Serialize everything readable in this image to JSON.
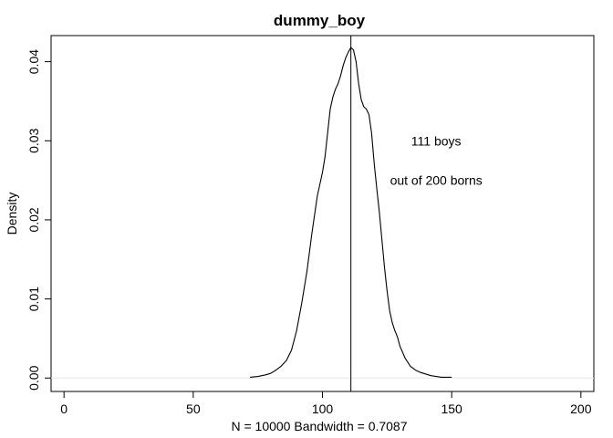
{
  "chart_data": {
    "type": "line",
    "title": "dummy_boy",
    "xlabel": "N = 10000   Bandwidth = 0.7087",
    "ylabel": "Density",
    "xlim": [
      -5,
      205
    ],
    "ylim": [
      -0.0017,
      0.0433
    ],
    "x_ticks": [
      0,
      50,
      100,
      150,
      200
    ],
    "x_tick_labels": [
      "0",
      "50",
      "100",
      "150",
      "200"
    ],
    "y_ticks": [
      0.0,
      0.01,
      0.02,
      0.03,
      0.04
    ],
    "y_tick_labels": [
      "0.00",
      "0.01",
      "0.02",
      "0.03",
      "0.04"
    ],
    "grid": false,
    "reference_line": {
      "orientation": "vertical",
      "x": 111
    },
    "annotations": [
      {
        "text": "111 boys",
        "x": 144,
        "y": 0.03
      },
      {
        "text": "out of 200 borns",
        "x": 144,
        "y": 0.025
      }
    ],
    "series": [
      {
        "x": [
          72,
          75,
          78,
          80,
          82,
          84,
          86,
          88,
          90,
          92,
          94,
          96,
          98,
          100,
          101,
          102,
          103,
          104,
          105,
          106,
          107,
          108,
          109,
          110,
          111,
          112,
          113,
          114,
          115,
          116,
          117,
          118,
          119,
          120,
          121,
          122,
          123,
          124,
          125,
          126,
          127,
          128,
          129,
          130,
          132,
          134,
          136,
          138,
          140,
          142,
          144,
          146,
          148,
          150
        ],
        "y": [
          0.0001,
          0.0002,
          0.0004,
          0.0006,
          0.001,
          0.0015,
          0.0022,
          0.0035,
          0.006,
          0.0095,
          0.0135,
          0.0185,
          0.023,
          0.026,
          0.028,
          0.031,
          0.034,
          0.0355,
          0.0365,
          0.0372,
          0.0382,
          0.0395,
          0.0405,
          0.0412,
          0.0418,
          0.0415,
          0.04,
          0.0372,
          0.0352,
          0.0343,
          0.034,
          0.0333,
          0.031,
          0.0272,
          0.024,
          0.021,
          0.0175,
          0.014,
          0.011,
          0.0085,
          0.007,
          0.006,
          0.0052,
          0.004,
          0.0025,
          0.0015,
          0.001,
          0.0007,
          0.0005,
          0.0003,
          0.0002,
          0.0001,
          0.0001,
          0.0001
        ]
      }
    ]
  }
}
